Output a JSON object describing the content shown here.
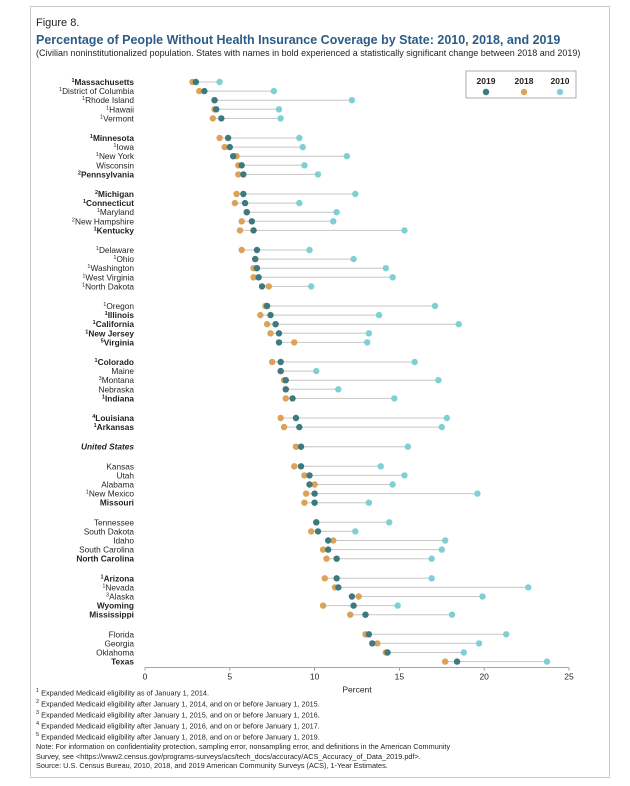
{
  "figure_label": "Figure 8.",
  "chart_data": {
    "type": "scatter",
    "title": "Percentage of People Without Health Insurance Coverage by State: 2010, 2018, and 2019",
    "subtitle": "(Civilian noninstitutionalized population. States with names in bold experienced a statistically significant change between 2018 and 2019)",
    "xlabel": "Percent",
    "xlim": [
      0,
      25
    ],
    "xticks": [
      "0",
      "5",
      "10",
      "15",
      "20",
      "25"
    ],
    "legend": [
      {
        "name": "2019",
        "color": "#3d7a80"
      },
      {
        "name": "2018",
        "color": "#dba25a"
      },
      {
        "name": "2010",
        "color": "#7fcfd6"
      }
    ],
    "legend_position": "top-right",
    "groups": [
      [
        {
          "label": "Massachusetts",
          "sup": "1",
          "bold": true,
          "v2019": 3.0,
          "v2018": 2.8,
          "v2010": 4.4
        },
        {
          "label": "District of Columbia",
          "sup": "1",
          "bold": false,
          "v2019": 3.5,
          "v2018": 3.2,
          "v2010": 7.6
        },
        {
          "label": "Rhode Island",
          "sup": "1",
          "bold": false,
          "v2019": 4.1,
          "v2018": 4.1,
          "v2010": 12.2
        },
        {
          "label": "Hawaii",
          "sup": "1",
          "bold": false,
          "v2019": 4.2,
          "v2018": 4.1,
          "v2010": 7.9
        },
        {
          "label": "Vermont",
          "sup": "1",
          "bold": false,
          "v2019": 4.5,
          "v2018": 4.0,
          "v2010": 8.0
        }
      ],
      [
        {
          "label": "Minnesota",
          "sup": "1",
          "bold": true,
          "v2019": 4.9,
          "v2018": 4.4,
          "v2010": 9.1
        },
        {
          "label": "Iowa",
          "sup": "1",
          "bold": false,
          "v2019": 5.0,
          "v2018": 4.7,
          "v2010": 9.3
        },
        {
          "label": "New York",
          "sup": "1",
          "bold": false,
          "v2019": 5.2,
          "v2018": 5.4,
          "v2010": 11.9
        },
        {
          "label": "Wisconsin",
          "sup": "",
          "bold": false,
          "v2019": 5.7,
          "v2018": 5.5,
          "v2010": 9.4
        },
        {
          "label": "Pennsylvania",
          "sup": "2",
          "bold": true,
          "v2019": 5.8,
          "v2018": 5.5,
          "v2010": 10.2
        }
      ],
      [
        {
          "label": "Michigan",
          "sup": "2",
          "bold": true,
          "v2019": 5.8,
          "v2018": 5.4,
          "v2010": 12.4
        },
        {
          "label": "Connecticut",
          "sup": "1",
          "bold": true,
          "v2019": 5.9,
          "v2018": 5.3,
          "v2010": 9.1
        },
        {
          "label": "Maryland",
          "sup": "1",
          "bold": false,
          "v2019": 6.0,
          "v2018": 6.0,
          "v2010": 11.3
        },
        {
          "label": "New Hampshire",
          "sup": "2",
          "bold": false,
          "v2019": 6.3,
          "v2018": 5.7,
          "v2010": 11.1
        },
        {
          "label": "Kentucky",
          "sup": "1",
          "bold": true,
          "v2019": 6.4,
          "v2018": 5.6,
          "v2010": 15.3
        }
      ],
      [
        {
          "label": "Delaware",
          "sup": "1",
          "bold": false,
          "v2019": 6.6,
          "v2018": 5.7,
          "v2010": 9.7
        },
        {
          "label": "Ohio",
          "sup": "1",
          "bold": false,
          "v2019": 6.5,
          "v2018": 6.5,
          "v2010": 12.3
        },
        {
          "label": "Washington",
          "sup": "1",
          "bold": false,
          "v2019": 6.6,
          "v2018": 6.4,
          "v2010": 14.2
        },
        {
          "label": "West Virginia",
          "sup": "1",
          "bold": false,
          "v2019": 6.7,
          "v2018": 6.4,
          "v2010": 14.6
        },
        {
          "label": "North Dakota",
          "sup": "1",
          "bold": false,
          "v2019": 6.9,
          "v2018": 7.3,
          "v2010": 9.8
        }
      ],
      [
        {
          "label": "Oregon",
          "sup": "1",
          "bold": false,
          "v2019": 7.2,
          "v2018": 7.1,
          "v2010": 17.1
        },
        {
          "label": "Illinois",
          "sup": "1",
          "bold": true,
          "v2019": 7.4,
          "v2018": 6.8,
          "v2010": 13.8
        },
        {
          "label": "California",
          "sup": "1",
          "bold": true,
          "v2019": 7.7,
          "v2018": 7.2,
          "v2010": 18.5
        },
        {
          "label": "New Jersey",
          "sup": "1",
          "bold": true,
          "v2019": 7.9,
          "v2018": 7.4,
          "v2010": 13.2
        },
        {
          "label": "Virginia",
          "sup": "5",
          "bold": true,
          "v2019": 7.9,
          "v2018": 8.8,
          "v2010": 13.1
        }
      ],
      [
        {
          "label": "Colorado",
          "sup": "1",
          "bold": true,
          "v2019": 8.0,
          "v2018": 7.5,
          "v2010": 15.9
        },
        {
          "label": "Maine",
          "sup": "",
          "bold": false,
          "v2019": 8.0,
          "v2018": 8.0,
          "v2010": 10.1
        },
        {
          "label": "Montana",
          "sup": "3",
          "bold": false,
          "v2019": 8.3,
          "v2018": 8.2,
          "v2010": 17.3
        },
        {
          "label": "Nebraska",
          "sup": "",
          "bold": false,
          "v2019": 8.3,
          "v2018": 8.3,
          "v2010": 11.4
        },
        {
          "label": "Indiana",
          "sup": "1",
          "bold": true,
          "v2019": 8.7,
          "v2018": 8.3,
          "v2010": 14.7
        }
      ],
      [
        {
          "label": "Louisiana",
          "sup": "4",
          "bold": true,
          "v2019": 8.9,
          "v2018": 8.0,
          "v2010": 17.8
        },
        {
          "label": "Arkansas",
          "sup": "1",
          "bold": true,
          "v2019": 9.1,
          "v2018": 8.2,
          "v2010": 17.5
        }
      ],
      [
        {
          "label": "United States",
          "sup": "",
          "bold": true,
          "italic": true,
          "v2019": 9.2,
          "v2018": 8.9,
          "v2010": 15.5
        }
      ],
      [
        {
          "label": "Kansas",
          "sup": "",
          "bold": false,
          "v2019": 9.2,
          "v2018": 8.8,
          "v2010": 13.9
        },
        {
          "label": "Utah",
          "sup": "",
          "bold": false,
          "v2019": 9.7,
          "v2018": 9.4,
          "v2010": 15.3
        },
        {
          "label": "Alabama",
          "sup": "",
          "bold": false,
          "v2019": 9.7,
          "v2018": 10.0,
          "v2010": 14.6
        },
        {
          "label": "New Mexico",
          "sup": "1",
          "bold": false,
          "v2019": 10.0,
          "v2018": 9.5,
          "v2010": 19.6
        },
        {
          "label": "Missouri",
          "sup": "",
          "bold": true,
          "v2019": 10.0,
          "v2018": 9.4,
          "v2010": 13.2
        }
      ],
      [
        {
          "label": "Tennessee",
          "sup": "",
          "bold": false,
          "v2019": 10.1,
          "v2018": 10.1,
          "v2010": 14.4
        },
        {
          "label": "South Dakota",
          "sup": "",
          "bold": false,
          "v2019": 10.2,
          "v2018": 9.8,
          "v2010": 12.4
        },
        {
          "label": "Idaho",
          "sup": "",
          "bold": false,
          "v2019": 10.8,
          "v2018": 11.1,
          "v2010": 17.7
        },
        {
          "label": "South Carolina",
          "sup": "",
          "bold": false,
          "v2019": 10.8,
          "v2018": 10.5,
          "v2010": 17.5
        },
        {
          "label": "North Carolina",
          "sup": "",
          "bold": true,
          "v2019": 11.3,
          "v2018": 10.7,
          "v2010": 16.9
        }
      ],
      [
        {
          "label": "Arizona",
          "sup": "1",
          "bold": true,
          "v2019": 11.3,
          "v2018": 10.6,
          "v2010": 16.9
        },
        {
          "label": "Nevada",
          "sup": "1",
          "bold": false,
          "v2019": 11.4,
          "v2018": 11.2,
          "v2010": 22.6
        },
        {
          "label": "Alaska",
          "sup": "3",
          "bold": false,
          "v2019": 12.2,
          "v2018": 12.6,
          "v2010": 19.9
        },
        {
          "label": "Wyoming",
          "sup": "",
          "bold": true,
          "v2019": 12.3,
          "v2018": 10.5,
          "v2010": 14.9
        },
        {
          "label": "Mississippi",
          "sup": "",
          "bold": true,
          "v2019": 13.0,
          "v2018": 12.1,
          "v2010": 18.1
        }
      ],
      [
        {
          "label": "Florida",
          "sup": "",
          "bold": false,
          "v2019": 13.2,
          "v2018": 13.0,
          "v2010": 21.3
        },
        {
          "label": "Georgia",
          "sup": "",
          "bold": false,
          "v2019": 13.4,
          "v2018": 13.7,
          "v2010": 19.7
        },
        {
          "label": "Oklahoma",
          "sup": "",
          "bold": false,
          "v2019": 14.3,
          "v2018": 14.2,
          "v2010": 18.8
        },
        {
          "label": "Texas",
          "sup": "",
          "bold": true,
          "v2019": 18.4,
          "v2018": 17.7,
          "v2010": 23.7
        }
      ]
    ]
  },
  "footnotes": [
    {
      "sup": "1",
      "text": " Expanded Medicaid eligibility as of January 1, 2014."
    },
    {
      "sup": "2",
      "text": " Expanded Medicaid eligibility after January 1, 2014, and on or before January 1, 2015."
    },
    {
      "sup": "3",
      "text": " Expanded Medicaid eligibility after January 1, 2015, and on or before January 1, 2016."
    },
    {
      "sup": "4",
      "text": " Expanded Medicaid eligibility after January 1, 2016, and on or before January 1, 2017."
    },
    {
      "sup": "5",
      "text": " Expanded Medicaid eligibility after January 1, 2018, and on or before January 1, 2019."
    }
  ],
  "note_line1": "Note: For information on confidentiality protection, sampling error, nonsampling error, and definitions in the American Community",
  "note_line2": "Survey, see <https://www2.census.gov/programs-surveys/acs/tech_docs/accuracy/ACS_Accuracy_of_Data_2019.pdf>.",
  "source": "Source: U.S. Census Bureau, 2010, 2018, and 2019 American Community Surveys (ACS), 1-Year Estimates."
}
